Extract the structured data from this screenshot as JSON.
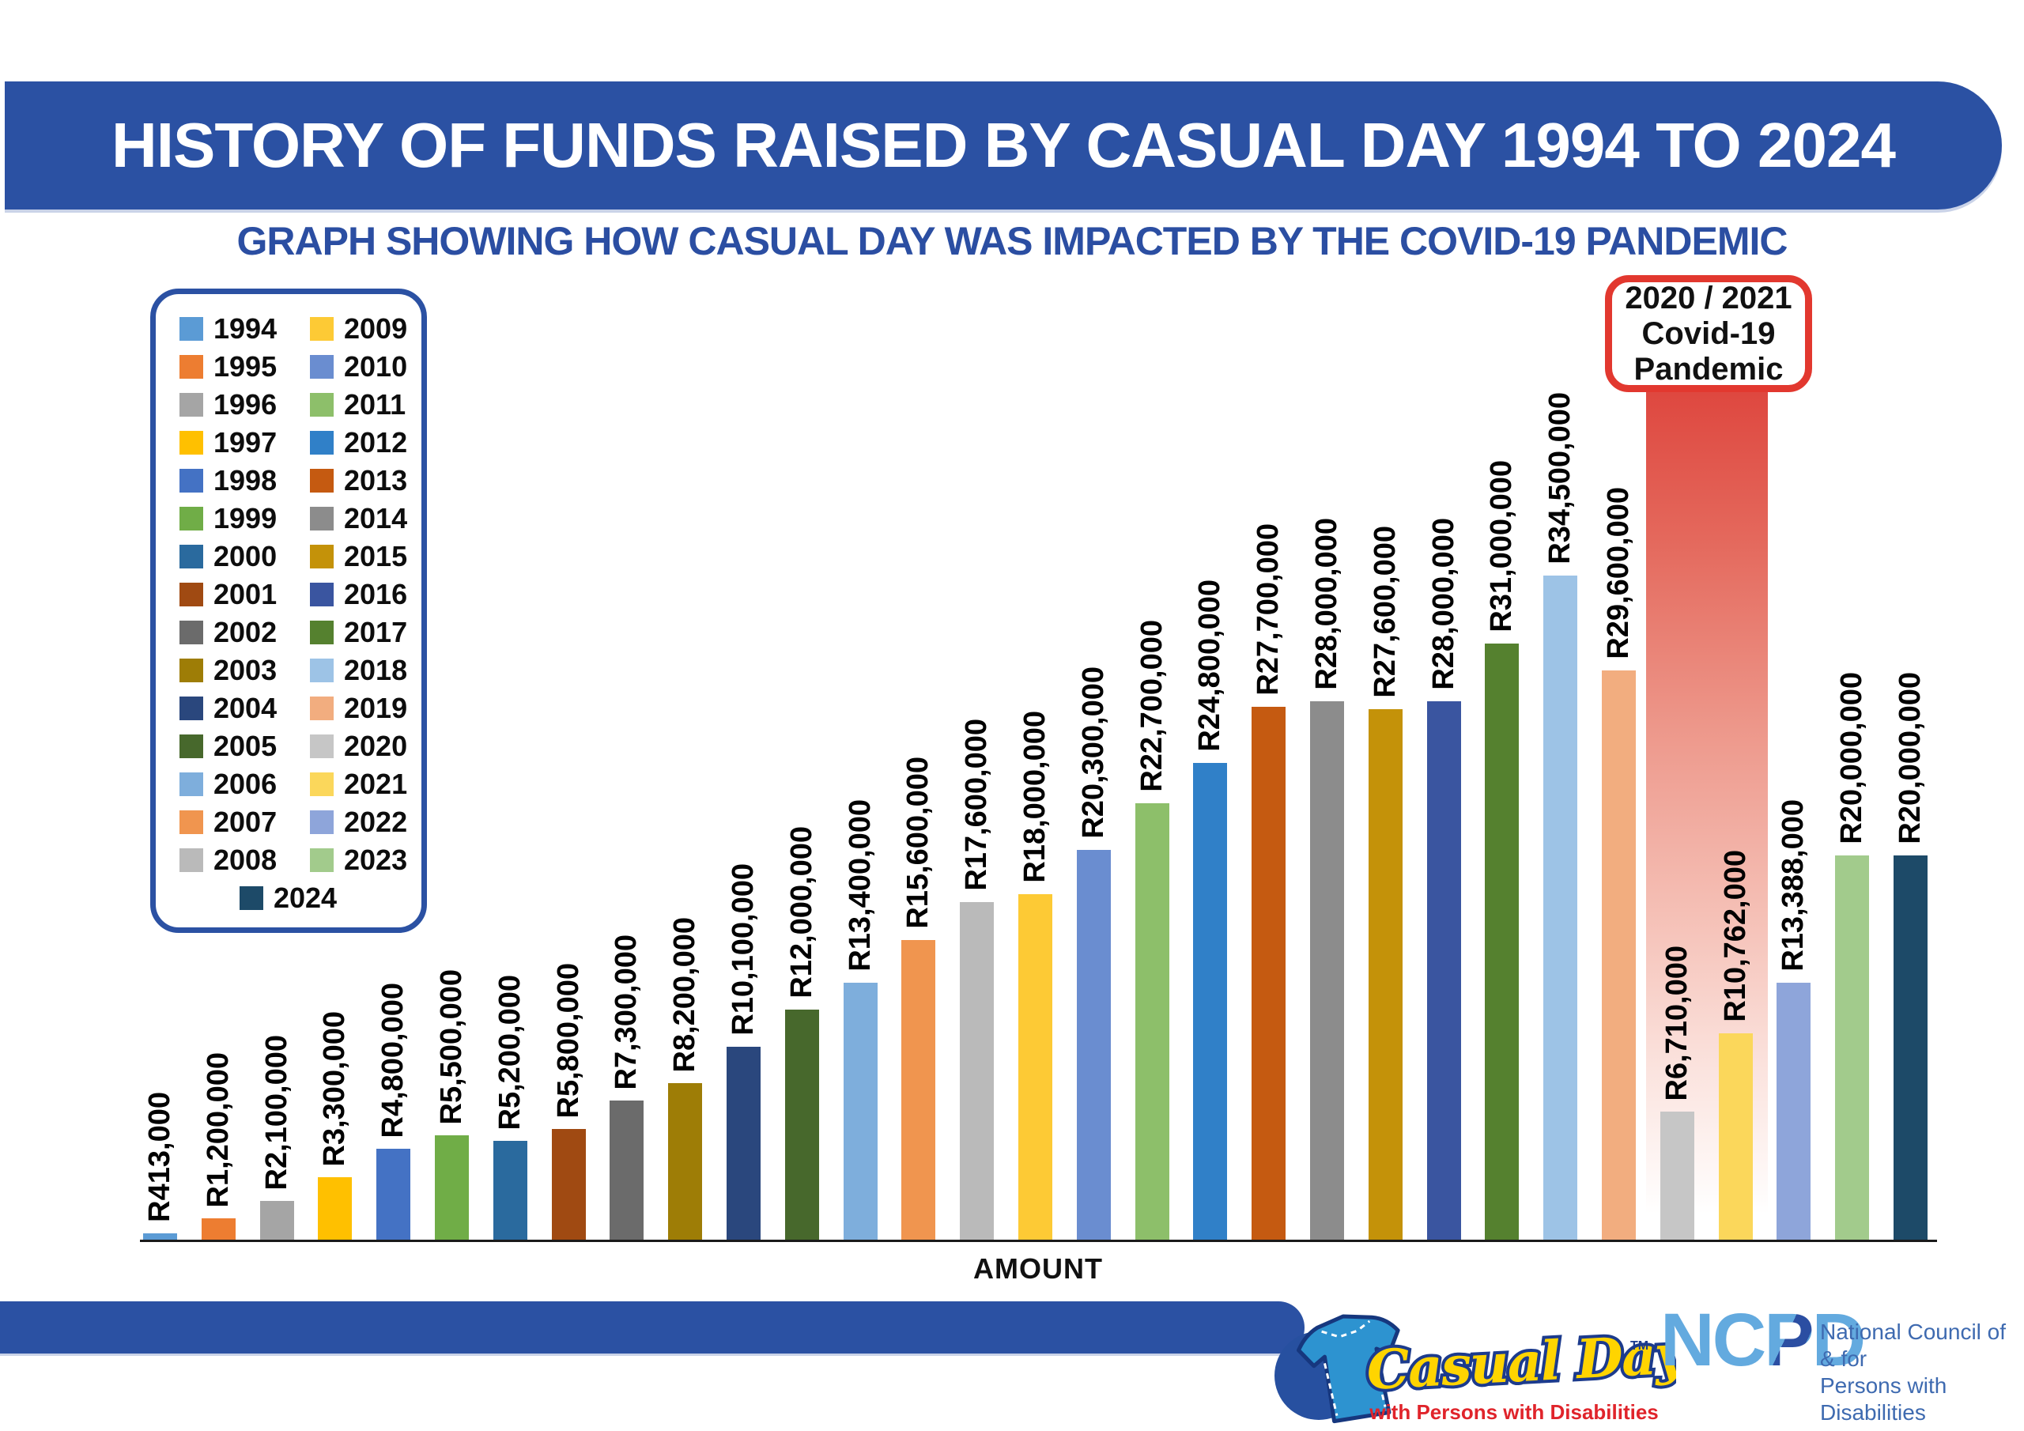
{
  "header": {
    "title": "HISTORY OF FUNDS RAISED BY CASUAL DAY 1994 TO 2024",
    "subtitle": "GRAPH SHOWING HOW CASUAL DAY WAS IMPACTED BY THE COVID-19 PANDEMIC"
  },
  "covid_callout": {
    "lines": [
      "2020 / 2021",
      "Covid-19",
      "Pandemic"
    ]
  },
  "x_axis": {
    "label": "AMOUNT"
  },
  "colors": {
    "primary_blue": "#2B51A3",
    "subtitle_text": "#2B4EA2",
    "covid_red_border": "#E2382F",
    "covid_band_red": "#DE463E",
    "axis": "#1A1A1A",
    "bar_label_text": "#000000"
  },
  "chart_data": {
    "type": "bar",
    "title": "HISTORY OF FUNDS RAISED BY CASUAL DAY 1994 TO 2024",
    "subtitle": "GRAPH SHOWING HOW CASUAL DAY WAS IMPACTED BY THE COVID-19 PANDEMIC",
    "xlabel": "AMOUNT",
    "ylabel": "",
    "ylim": [
      0,
      35000000
    ],
    "grid": false,
    "legend_position": "upper-left",
    "annotation": "2020 / 2021 Covid-19 Pandemic (red gradient band over 2020 and 2021 bars)",
    "categories": [
      "1994",
      "1995",
      "1996",
      "1997",
      "1998",
      "1999",
      "2000",
      "2001",
      "2002",
      "2003",
      "2004",
      "2005",
      "2006",
      "2007",
      "2008",
      "2009",
      "2010",
      "2011",
      "2012",
      "2013",
      "2014",
      "2015",
      "2016",
      "2017",
      "2018",
      "2019",
      "2020",
      "2021",
      "2022",
      "2023",
      "2024"
    ],
    "values": [
      413000,
      1200000,
      2100000,
      3300000,
      4800000,
      5500000,
      5200000,
      5800000,
      7300000,
      8200000,
      10100000,
      12000000,
      13400000,
      15600000,
      17600000,
      18000000,
      20300000,
      22700000,
      24800000,
      27700000,
      28000000,
      27600000,
      28000000,
      31000000,
      34500000,
      29600000,
      6710000,
      10762000,
      13388000,
      20000000,
      20000000
    ],
    "labels": [
      "R413,000",
      "R1,200,000",
      "R2,100,000",
      "R3,300,000",
      "R4,800,000",
      "R5,500,000",
      "R5,200,000",
      "R5,800,000",
      "R7,300,000",
      "R8,200,000",
      "R10,100,000",
      "R12,000,000",
      "R13,400,000",
      "R15,600,000",
      "R17,600,000",
      "R18,000,000",
      "R20,300,000",
      "R22,700,000",
      "R24,800,000",
      "R27,700,000",
      "R28,000,000",
      "R27,600,000",
      "R28,000,000",
      "R31,000,000",
      "R34,500,000",
      "R29,600,000",
      "R6,710,000",
      "R10,762,000",
      "R13,388,000",
      "R20,000,000",
      "R20,000,000"
    ],
    "bar_colors": [
      "#5B9BD5",
      "#ED7D31",
      "#A5A5A5",
      "#FFC000",
      "#4472C4",
      "#70AD47",
      "#2A6A9E",
      "#A04A12",
      "#6B6B6B",
      "#9E7D06",
      "#2A477D",
      "#47682C",
      "#7EAEDC",
      "#F0954F",
      "#BABABA",
      "#FDCA35",
      "#6A8DD0",
      "#8DBF6A",
      "#3080C8",
      "#C55A11",
      "#8C8C8C",
      "#C49209",
      "#3A55A0",
      "#55812F",
      "#9DC3E6",
      "#F2AD7F",
      "#C6C6C6",
      "#FBD75B",
      "#8EA5DA",
      "#A2CB8C",
      "#1D4A68"
    ]
  },
  "branding": {
    "casual_day": {
      "name": "Casual Day",
      "trademark": "TM",
      "tagline": "with Persons with Disabilities",
      "shirt_blue": "#2D93D0",
      "script_yellow": "#FFD400",
      "outline_navy": "#1C3B8D",
      "tagline_red": "#E0242B"
    },
    "ncpd": {
      "letters_nc": "NC",
      "letter_p": "P",
      "letter_d": "D",
      "line1": "National Council of & for",
      "line2": "Persons with Disabilities",
      "light_blue": "#63AADF",
      "dark_blue": "#2B4EA2"
    }
  }
}
